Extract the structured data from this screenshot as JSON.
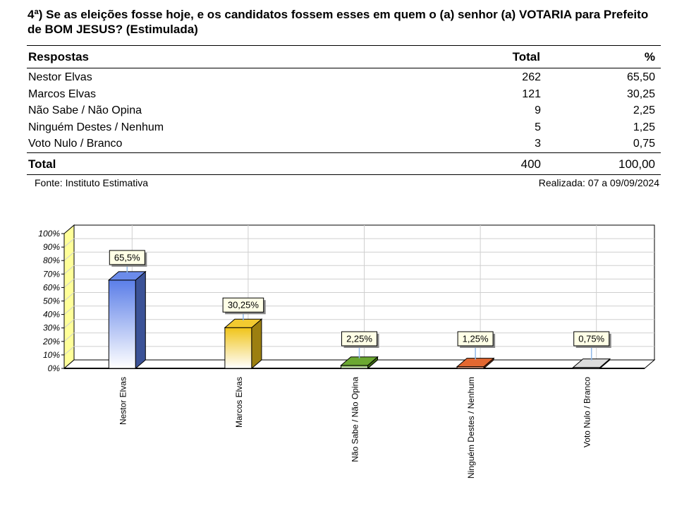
{
  "title": "4ª) Se as eleições fosse hoje, e os candidatos fossem esses em quem o (a) senhor (a) VOTARIA para Prefeito de BOM JESUS? (Estimulada)",
  "table": {
    "headers": {
      "col1": "Respostas",
      "col2": "Total",
      "col3": "%"
    },
    "rows": [
      {
        "label": "Nestor Elvas",
        "total": "262",
        "pct": "65,50"
      },
      {
        "label": "Marcos Elvas",
        "total": "121",
        "pct": "30,25"
      },
      {
        "label": "Não Sabe / Não Opina",
        "total": "9",
        "pct": "2,25"
      },
      {
        "label": "Ninguém Destes / Nenhum",
        "total": "5",
        "pct": "1,25"
      },
      {
        "label": "Voto Nulo / Branco",
        "total": "3",
        "pct": "0,75"
      }
    ],
    "total": {
      "label": "Total",
      "total": "400",
      "pct": "100,00"
    }
  },
  "footer": {
    "source": "Fonte: Instituto Estimativa",
    "date": "Realizada: 07 a 09/09/2024"
  },
  "chart_data": {
    "type": "bar",
    "categories": [
      "Nestor Elvas",
      "Marcos Elvas",
      "Não Sabe / Não Opina",
      "Ninguém Destes / Nenhum",
      "Voto Nulo / Branco"
    ],
    "values": [
      65.5,
      30.25,
      2.25,
      1.25,
      0.75
    ],
    "data_labels": [
      "65,5%",
      "30,25%",
      "2,25%",
      "1,25%",
      "0,75%"
    ],
    "colors": [
      "#5b7ee8",
      "#f0c419",
      "#5a9e1a",
      "#e0571a",
      "#d8d8d8"
    ],
    "yticks": [
      "0%",
      "10%",
      "20%",
      "30%",
      "40%",
      "50%",
      "60%",
      "70%",
      "80%",
      "90%",
      "100%"
    ],
    "ylim": [
      0,
      100
    ],
    "grid": true,
    "style": "3d"
  }
}
